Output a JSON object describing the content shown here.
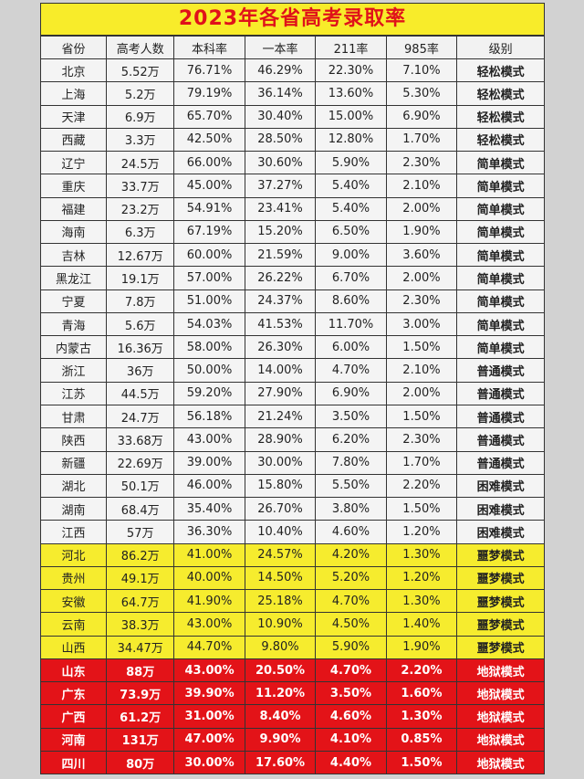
{
  "title": "2023年各省高考录取率",
  "headers": [
    "省份",
    "高考人数",
    "本科率",
    "一本率",
    "211率",
    "985率",
    "级别"
  ],
  "rows": [
    [
      "北京",
      "5.52万",
      "76.71%",
      "46.29%",
      "22.30%",
      "7.10%",
      "轻松模式"
    ],
    [
      "上海",
      "5.2万",
      "79.19%",
      "36.14%",
      "13.60%",
      "5.30%",
      "轻松模式"
    ],
    [
      "天津",
      "6.9万",
      "65.70%",
      "30.40%",
      "15.00%",
      "6.90%",
      "轻松模式"
    ],
    [
      "西藏",
      "3.3万",
      "42.50%",
      "28.50%",
      "12.80%",
      "1.70%",
      "轻松模式"
    ],
    [
      "辽宁",
      "24.5万",
      "66.00%",
      "30.60%",
      "5.90%",
      "2.30%",
      "简单模式"
    ],
    [
      "重庆",
      "33.7万",
      "45.00%",
      "37.27%",
      "5.40%",
      "2.10%",
      "简单模式"
    ],
    [
      "福建",
      "23.2万",
      "54.91%",
      "23.41%",
      "5.40%",
      "2.00%",
      "简单模式"
    ],
    [
      "海南",
      "6.3万",
      "67.19%",
      "15.20%",
      "6.50%",
      "1.90%",
      "简单模式"
    ],
    [
      "吉林",
      "12.67万",
      "60.00%",
      "21.59%",
      "9.00%",
      "3.60%",
      "简单模式"
    ],
    [
      "黑龙江",
      "19.1万",
      "57.00%",
      "26.22%",
      "6.70%",
      "2.00%",
      "简单模式"
    ],
    [
      "宁夏",
      "7.8万",
      "51.00%",
      "24.37%",
      "8.60%",
      "2.30%",
      "简单模式"
    ],
    [
      "青海",
      "5.6万",
      "54.03%",
      "41.53%",
      "11.70%",
      "3.00%",
      "简单模式"
    ],
    [
      "内蒙古",
      "16.36万",
      "58.00%",
      "26.30%",
      "6.00%",
      "1.50%",
      "简单模式"
    ],
    [
      "浙江",
      "36万",
      "50.00%",
      "14.00%",
      "4.70%",
      "2.10%",
      "普通模式"
    ],
    [
      "江苏",
      "44.5万",
      "59.20%",
      "27.90%",
      "6.90%",
      "2.00%",
      "普通模式"
    ],
    [
      "甘肃",
      "24.7万",
      "56.18%",
      "21.24%",
      "3.50%",
      "1.50%",
      "普通模式"
    ],
    [
      "陕西",
      "33.68万",
      "43.00%",
      "28.90%",
      "6.20%",
      "2.30%",
      "普通模式"
    ],
    [
      "新疆",
      "22.69万",
      "39.00%",
      "30.00%",
      "7.80%",
      "1.70%",
      "普通模式"
    ],
    [
      "湖北",
      "50.1万",
      "46.00%",
      "15.80%",
      "5.50%",
      "2.20%",
      "困难模式"
    ],
    [
      "湖南",
      "68.4万",
      "35.40%",
      "26.70%",
      "3.80%",
      "1.50%",
      "困难模式"
    ],
    [
      "江西",
      "57万",
      "36.30%",
      "10.40%",
      "4.60%",
      "1.20%",
      "困难模式"
    ],
    [
      "河北",
      "86.2万",
      "41.00%",
      "24.57%",
      "4.20%",
      "1.30%",
      "噩梦模式"
    ],
    [
      "贵州",
      "49.1万",
      "40.00%",
      "14.50%",
      "5.20%",
      "1.20%",
      "噩梦模式"
    ],
    [
      "安徽",
      "64.7万",
      "41.90%",
      "25.18%",
      "4.70%",
      "1.30%",
      "噩梦模式"
    ],
    [
      "云南",
      "38.3万",
      "43.00%",
      "10.90%",
      "4.50%",
      "1.40%",
      "噩梦模式"
    ],
    [
      "山西",
      "34.47万",
      "44.70%",
      "9.80%",
      "5.90%",
      "1.90%",
      "噩梦模式"
    ],
    [
      "山东",
      "88万",
      "43.00%",
      "20.50%",
      "4.70%",
      "2.20%",
      "地狱模式"
    ],
    [
      "广东",
      "73.9万",
      "39.90%",
      "11.20%",
      "3.50%",
      "1.60%",
      "地狱模式"
    ],
    [
      "广西",
      "61.2万",
      "31.00%",
      "8.40%",
      "4.60%",
      "1.30%",
      "地狱模式"
    ],
    [
      "河南",
      "131万",
      "47.00%",
      "9.90%",
      "4.10%",
      "0.85%",
      "地狱模式"
    ],
    [
      "四川",
      "80万",
      "30.00%",
      "17.60%",
      "4.40%",
      "1.50%",
      "地狱模式"
    ]
  ],
  "colors": {
    "title_bg": "#f8ec2a",
    "title_text": "#e0121a",
    "yellow_row": "#f6ec2e",
    "red_row": "#e31318"
  },
  "highlight": {
    "yellow_levels": [
      "噩梦模式"
    ],
    "red_levels": [
      "地狱模式"
    ]
  }
}
